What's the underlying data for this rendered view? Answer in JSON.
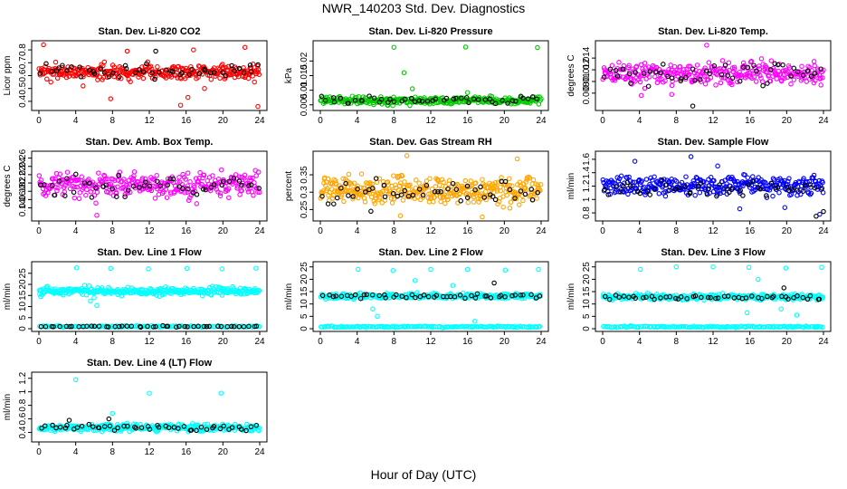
{
  "title": "NWR_140203 Std. Dev. Diagnostics",
  "xlabel": "Hour of Day (UTC)",
  "chart_data": [
    {
      "type": "scatter",
      "title": "Stan. Dev. Li-820 CO2",
      "ylabel": "Licor ppm",
      "xlim": [
        0,
        24
      ],
      "ylim": [
        0.35,
        0.85
      ],
      "xticks": [
        0,
        4,
        8,
        12,
        16,
        20,
        24
      ],
      "yticks": [
        0.4,
        0.5,
        0.6,
        0.7,
        0.8
      ],
      "series": [
        {
          "color": "#ff0000",
          "base": 0.63,
          "spread": 0.05,
          "n": 320,
          "outliers": [
            [
              0.5,
              0.84
            ],
            [
              1.3,
              0.55
            ],
            [
              4.8,
              0.52
            ],
            [
              7.8,
              0.42
            ],
            [
              9.6,
              0.79
            ],
            [
              15.4,
              0.37
            ],
            [
              16.2,
              0.43
            ],
            [
              16.8,
              0.8
            ],
            [
              18.0,
              0.5
            ],
            [
              22.4,
              0.82
            ],
            [
              23.8,
              0.36
            ]
          ]
        },
        {
          "color": "#000000",
          "base": 0.63,
          "spread": 0.05,
          "n": 48,
          "outliers": [
            [
              12.7,
              0.79
            ]
          ]
        }
      ]
    },
    {
      "type": "scatter",
      "title": "Stan. Dev. Li-820 Pressure",
      "ylabel": "kPa",
      "xlim": [
        0,
        24
      ],
      "ylim": [
        0.004,
        0.026
      ],
      "xticks": [
        0,
        4,
        8,
        12,
        16,
        20,
        24
      ],
      "yticks": [
        0.005,
        0.01,
        0.015,
        0.02
      ],
      "series": [
        {
          "color": "#00cc00",
          "base": 0.0065,
          "spread": 0.0012,
          "n": 320,
          "outliers": [
            [
              8.0,
              0.0247
            ],
            [
              9.1,
              0.016
            ],
            [
              15.8,
              0.0248
            ],
            [
              10.0,
              0.0105
            ],
            [
              16.0,
              0.0092
            ],
            [
              23.6,
              0.0246
            ]
          ]
        },
        {
          "color": "#000000",
          "base": 0.0066,
          "spread": 0.0012,
          "n": 48,
          "outliers": []
        }
      ]
    },
    {
      "type": "scatter",
      "title": "Stan. Dev. Li-820 Temp.",
      "ylabel": "degrees C",
      "xlim": [
        0,
        24
      ],
      "ylim": [
        0.0055,
        0.0165
      ],
      "xticks": [
        0,
        4,
        8,
        12,
        16,
        20,
        24
      ],
      "yticks": [
        0.008,
        0.01,
        0.012,
        0.014
      ],
      "series": [
        {
          "color": "#ff00ff",
          "base": 0.0113,
          "spread": 0.0017,
          "n": 320,
          "outliers": [
            [
              11.3,
              0.0162
            ],
            [
              4.2,
              0.0076
            ],
            [
              7.5,
              0.0078
            ]
          ]
        },
        {
          "color": "#000000",
          "base": 0.0113,
          "spread": 0.0016,
          "n": 48,
          "outliers": [
            [
              9.8,
              0.0058
            ]
          ]
        }
      ]
    },
    {
      "type": "scatter",
      "title": "Stan. Dev. Amb. Box Temp.",
      "ylabel": "degrees C",
      "xlim": [
        0,
        24
      ],
      "ylim": [
        0.115,
        0.27
      ],
      "xticks": [
        0,
        4,
        8,
        12,
        16,
        20,
        24
      ],
      "yticks": [
        0.14,
        0.16,
        0.18,
        0.2,
        0.22,
        0.24,
        0.26
      ],
      "series": [
        {
          "color": "#ff00ff",
          "base": 0.195,
          "spread": 0.028,
          "n": 320,
          "outliers": [
            [
              6.3,
              0.122
            ]
          ]
        },
        {
          "color": "#000000",
          "base": 0.193,
          "spread": 0.025,
          "n": 48,
          "outliers": []
        }
      ]
    },
    {
      "type": "scatter",
      "title": "Stan. Dev. Gas Stream RH",
      "ylabel": "percent",
      "xlim": [
        0,
        24
      ],
      "ylim": [
        0.225,
        0.41
      ],
      "xticks": [
        0,
        4,
        8,
        12,
        16,
        20,
        24
      ],
      "yticks": [
        0.25,
        0.3,
        0.35
      ],
      "series": [
        {
          "color": "#ffa500",
          "base": 0.305,
          "spread": 0.035,
          "n": 360,
          "outliers": [
            [
              9.4,
              0.405
            ],
            [
              21.4,
              0.396
            ],
            [
              17.6,
              0.229
            ],
            [
              8.7,
              0.232
            ]
          ]
        },
        {
          "color": "#000000",
          "base": 0.3,
          "spread": 0.028,
          "n": 48,
          "outliers": [
            [
              5.5,
              0.245
            ]
          ]
        }
      ]
    },
    {
      "type": "scatter",
      "title": "Stan. Dev. Sample Flow",
      "ylabel": "ml/min",
      "xlim": [
        0,
        24
      ],
      "ylim": [
        0.72,
        1.68
      ],
      "xticks": [
        0,
        4,
        8,
        12,
        16,
        20,
        24
      ],
      "yticks": [
        0.8,
        1.0,
        1.2,
        1.4,
        1.6
      ],
      "series": [
        {
          "color": "#0000ff",
          "base": 1.2,
          "spread": 0.13,
          "n": 320,
          "outliers": [
            [
              9.6,
              1.64
            ],
            [
              3.5,
              1.57
            ],
            [
              19.8,
              0.88
            ],
            [
              14.9,
              0.86
            ],
            [
              12.5,
              1.5
            ],
            [
              23.6,
              0.78
            ]
          ]
        },
        {
          "color": "#000000",
          "base": 1.15,
          "spread": 0.12,
          "n": 48,
          "outliers": [
            [
              23.2,
              0.75
            ],
            [
              24.0,
              0.82
            ]
          ]
        }
      ]
    },
    {
      "type": "scatter",
      "title": "Stan. Dev. Line 1 Flow",
      "ylabel": "ml/min",
      "xlim": [
        0,
        24
      ],
      "ylim": [
        0,
        29
      ],
      "xticks": [
        0,
        4,
        8,
        12,
        16,
        20,
        24
      ],
      "yticks": [
        0,
        5,
        10,
        15,
        20,
        25
      ],
      "series": [
        {
          "color": "#00ffff",
          "base": 17,
          "spread": 1.6,
          "n": 320,
          "outliers": [
            [
              4.1,
              27.5
            ],
            [
              7.8,
              27.2
            ],
            [
              11.9,
              27.0
            ],
            [
              16.1,
              27.2
            ],
            [
              19.9,
              27.0
            ],
            [
              23.6,
              27.3
            ],
            [
              5.6,
              12.5
            ],
            [
              6.3,
              10.5
            ],
            [
              6.0,
              14.0
            ],
            [
              0.2,
              14.5
            ],
            [
              13.1,
              14.6
            ]
          ]
        },
        {
          "color": "#00ffff",
          "base": 1.0,
          "spread": 0.3,
          "n": 150,
          "outliers": []
        },
        {
          "color": "#000000",
          "base": 1.0,
          "spread": 0.25,
          "n": 48,
          "outliers": []
        }
      ]
    },
    {
      "type": "scatter",
      "title": "Stan. Dev. Line 2 Flow",
      "ylabel": "ml/min",
      "xlim": [
        0,
        24
      ],
      "ylim": [
        0,
        26
      ],
      "xticks": [
        0,
        4,
        8,
        12,
        16,
        20,
        24
      ],
      "yticks": [
        0,
        5,
        10,
        15,
        20,
        25
      ],
      "series": [
        {
          "color": "#00ffff",
          "base": 13.2,
          "spread": 1.0,
          "n": 320,
          "outliers": [
            [
              4.1,
              24.0
            ],
            [
              7.9,
              23.5
            ],
            [
              12.0,
              24.0
            ],
            [
              16.0,
              24.0
            ],
            [
              20.1,
              23.7
            ],
            [
              23.7,
              24.0
            ],
            [
              5.7,
              8.0
            ],
            [
              6.2,
              5.0
            ],
            [
              10.3,
              19.5
            ],
            [
              14.4,
              17.5
            ],
            [
              16.8,
              3.0
            ]
          ]
        },
        {
          "color": "#00ffff",
          "base": 0.8,
          "spread": 0.3,
          "n": 150,
          "outliers": []
        },
        {
          "color": "#000000",
          "base": 13.3,
          "spread": 0.9,
          "n": 48,
          "outliers": [
            [
              18.9,
              18.5
            ]
          ]
        }
      ]
    },
    {
      "type": "scatter",
      "title": "Stan. Dev. Line 3 Flow",
      "ylabel": "ml/min",
      "xlim": [
        0,
        24
      ],
      "ylim": [
        0,
        26
      ],
      "xticks": [
        0,
        4,
        8,
        12,
        16,
        20,
        24
      ],
      "yticks": [
        0,
        5,
        10,
        15,
        20,
        25
      ],
      "series": [
        {
          "color": "#00ffff",
          "base": 12.8,
          "spread": 1.0,
          "n": 320,
          "outliers": [
            [
              4.1,
              24.0
            ],
            [
              8.0,
              25.0
            ],
            [
              12.0,
              25.0
            ],
            [
              15.9,
              24.8
            ],
            [
              19.9,
              24.5
            ],
            [
              23.8,
              24.8
            ],
            [
              15.7,
              6.5
            ],
            [
              16.9,
              20.0
            ],
            [
              19.4,
              8.0
            ],
            [
              21.1,
              5.5
            ]
          ]
        },
        {
          "color": "#00ffff",
          "base": 0.8,
          "spread": 0.3,
          "n": 150,
          "outliers": []
        },
        {
          "color": "#000000",
          "base": 12.6,
          "spread": 0.8,
          "n": 48,
          "outliers": [
            [
              19.7,
              16.5
            ]
          ]
        }
      ]
    },
    {
      "type": "scatter",
      "title": "Stan. Dev. Line 4 (LT) Flow",
      "ylabel": "ml/min",
      "xlim": [
        0,
        24
      ],
      "ylim": [
        0.3,
        1.25
      ],
      "xticks": [
        0,
        4,
        8,
        12,
        16,
        20,
        24
      ],
      "yticks": [
        0.4,
        0.6,
        0.8,
        1.0,
        1.2
      ],
      "series": [
        {
          "color": "#00ffff",
          "base": 0.47,
          "spread": 0.045,
          "n": 320,
          "outliers": [
            [
              4.0,
              1.18
            ],
            [
              12.0,
              0.98
            ],
            [
              19.8,
              0.98
            ],
            [
              8.0,
              0.68
            ]
          ]
        },
        {
          "color": "#000000",
          "base": 0.47,
          "spread": 0.04,
          "n": 48,
          "outliers": [
            [
              3.3,
              0.58
            ],
            [
              7.6,
              0.6
            ]
          ]
        }
      ]
    }
  ]
}
